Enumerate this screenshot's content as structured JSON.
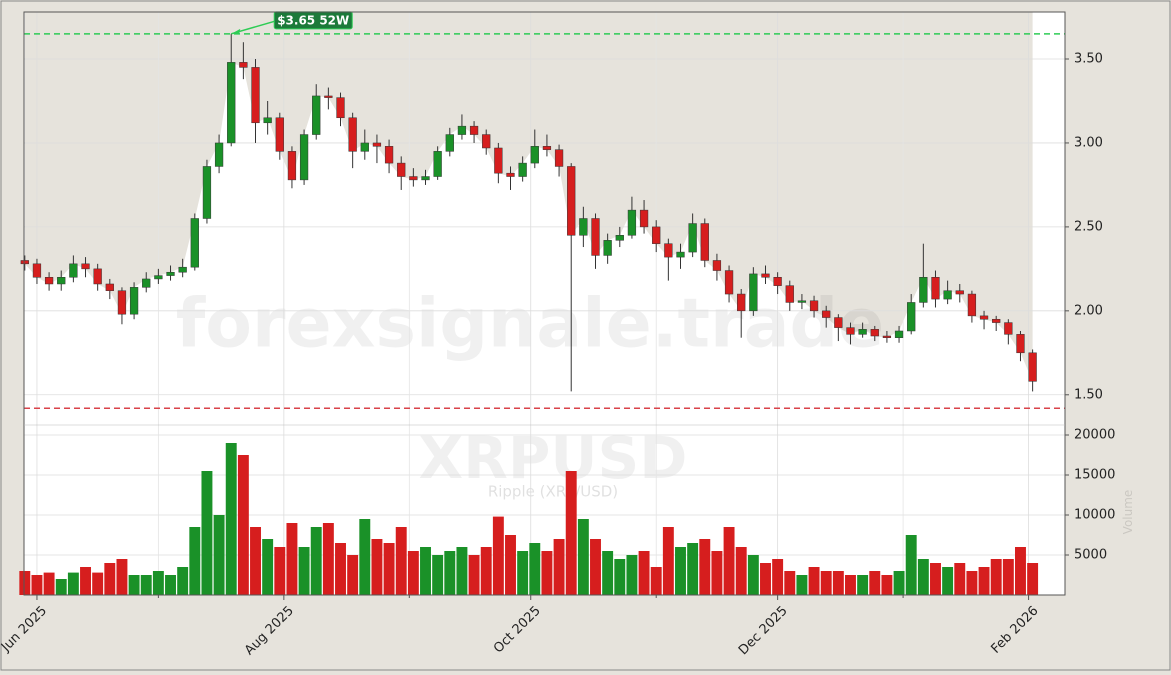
{
  "chart_data": {
    "type": "candlestick",
    "x": [
      -3,
      0,
      3,
      6,
      9,
      12,
      15,
      18,
      21,
      24,
      27,
      30,
      33,
      36,
      39,
      42,
      45,
      48,
      51,
      54,
      57,
      60,
      63,
      66,
      69,
      72,
      75,
      78,
      81,
      84,
      87,
      90,
      93,
      96,
      99,
      102,
      105,
      108,
      111,
      114,
      117,
      120,
      123,
      126,
      129,
      132,
      135,
      138,
      141,
      144,
      147,
      150,
      153,
      156,
      159,
      162,
      165,
      168,
      171,
      174,
      177,
      180,
      183,
      186,
      189,
      192,
      195,
      198,
      201,
      204,
      207,
      210,
      213,
      216,
      219,
      222,
      225,
      228,
      231,
      234,
      237,
      240,
      243,
      246
    ],
    "open": [
      2.3,
      2.28,
      2.2,
      2.16,
      2.2,
      2.28,
      2.25,
      2.16,
      2.12,
      1.98,
      2.14,
      2.19,
      2.21,
      2.23,
      2.26,
      2.55,
      2.86,
      3.0,
      3.48,
      3.45,
      3.12,
      3.15,
      2.95,
      2.78,
      3.05,
      3.28,
      3.27,
      3.15,
      2.95,
      3.0,
      2.98,
      2.88,
      2.8,
      2.78,
      2.8,
      2.95,
      3.05,
      3.1,
      3.05,
      2.97,
      2.82,
      2.8,
      2.88,
      2.98,
      2.96,
      2.86,
      2.45,
      2.55,
      2.33,
      2.42,
      2.45,
      2.6,
      2.5,
      2.4,
      2.32,
      2.35,
      2.52,
      2.3,
      2.24,
      2.1,
      2.0,
      2.22,
      2.2,
      2.15,
      2.05,
      2.06,
      2.0,
      1.96,
      1.9,
      1.86,
      1.89,
      1.85,
      1.84,
      1.88,
      2.05,
      2.2,
      2.07,
      2.12,
      2.1,
      1.97,
      1.95,
      1.93,
      1.86,
      1.75
    ],
    "high": [
      2.33,
      2.31,
      2.23,
      2.24,
      2.33,
      2.32,
      2.28,
      2.19,
      2.14,
      2.17,
      2.23,
      2.25,
      2.27,
      2.31,
      2.58,
      2.9,
      3.05,
      3.65,
      3.6,
      3.5,
      3.25,
      3.18,
      2.98,
      3.08,
      3.35,
      3.33,
      3.3,
      3.18,
      3.08,
      3.05,
      3.02,
      2.92,
      2.85,
      2.84,
      2.98,
      3.09,
      3.17,
      3.13,
      3.08,
      3.0,
      2.86,
      2.92,
      3.08,
      3.05,
      2.99,
      2.88,
      2.62,
      2.58,
      2.46,
      2.5,
      2.68,
      2.66,
      2.54,
      2.43,
      2.4,
      2.58,
      2.55,
      2.34,
      2.27,
      2.13,
      2.26,
      2.27,
      2.23,
      2.18,
      2.1,
      2.09,
      2.03,
      1.98,
      1.93,
      1.93,
      1.91,
      1.88,
      1.91,
      2.1,
      2.4,
      2.24,
      2.18,
      2.16,
      2.12,
      2.0,
      1.97,
      1.95,
      1.88,
      1.77
    ],
    "low": [
      2.24,
      2.16,
      2.12,
      2.12,
      2.17,
      2.2,
      2.12,
      2.07,
      1.92,
      1.95,
      2.11,
      2.16,
      2.18,
      2.2,
      2.24,
      2.52,
      2.82,
      2.98,
      3.38,
      3.0,
      3.05,
      2.9,
      2.73,
      2.75,
      3.02,
      3.2,
      3.1,
      2.85,
      2.9,
      2.88,
      2.82,
      2.72,
      2.74,
      2.75,
      2.78,
      2.92,
      3.02,
      3.0,
      2.93,
      2.76,
      2.72,
      2.77,
      2.85,
      2.92,
      2.8,
      1.52,
      2.38,
      2.25,
      2.28,
      2.38,
      2.43,
      2.46,
      2.35,
      2.18,
      2.25,
      2.32,
      2.26,
      2.18,
      2.05,
      1.84,
      1.97,
      2.16,
      2.1,
      2.0,
      2.01,
      1.96,
      1.9,
      1.82,
      1.8,
      1.84,
      1.82,
      1.81,
      1.81,
      1.86,
      2.02,
      2.02,
      2.04,
      2.05,
      1.93,
      1.89,
      1.88,
      1.8,
      1.7,
      1.52
    ],
    "close": [
      2.28,
      2.2,
      2.16,
      2.2,
      2.28,
      2.25,
      2.16,
      2.12,
      1.98,
      2.14,
      2.19,
      2.21,
      2.23,
      2.26,
      2.55,
      2.86,
      3.0,
      3.48,
      3.45,
      3.12,
      3.15,
      2.95,
      2.78,
      3.05,
      3.28,
      3.27,
      3.15,
      2.95,
      3.0,
      2.98,
      2.88,
      2.8,
      2.78,
      2.8,
      2.95,
      3.05,
      3.1,
      3.05,
      2.97,
      2.82,
      2.8,
      2.88,
      2.98,
      2.96,
      2.86,
      2.45,
      2.55,
      2.33,
      2.42,
      2.45,
      2.6,
      2.5,
      2.4,
      2.32,
      2.35,
      2.52,
      2.3,
      2.24,
      2.1,
      2.0,
      2.22,
      2.2,
      2.15,
      2.05,
      2.06,
      2.0,
      1.96,
      1.9,
      1.86,
      1.89,
      1.85,
      1.84,
      1.88,
      2.05,
      2.2,
      2.07,
      2.12,
      2.1,
      1.97,
      1.95,
      1.93,
      1.86,
      1.75,
      1.58
    ],
    "volume": [
      3000,
      2500,
      2800,
      2000,
      2800,
      3500,
      2800,
      4000,
      4500,
      2500,
      2500,
      3000,
      2500,
      3500,
      8500,
      15500,
      10000,
      19000,
      17500,
      8500,
      7000,
      6000,
      9000,
      6000,
      8500,
      9000,
      6500,
      5000,
      9500,
      7000,
      6500,
      8500,
      5500,
      6000,
      5000,
      5500,
      6000,
      5000,
      6000,
      9800,
      7500,
      5500,
      6500,
      5500,
      7000,
      15500,
      9500,
      7000,
      5500,
      4500,
      5000,
      5500,
      3500,
      8500,
      6000,
      6500,
      7000,
      5500,
      8500,
      6000,
      5000,
      4000,
      4500,
      3000,
      2500,
      3500,
      3000,
      3000,
      2500,
      2500,
      3000,
      2500,
      3000,
      7500,
      4500,
      4000,
      3500,
      4000,
      3000,
      3500,
      4500,
      4500,
      6000,
      4000
    ],
    "up_color": "#1a9128",
    "down_color": "#d61e1e",
    "shade_color": "#e6e3dc",
    "xlim": [
      -3.2,
      254
    ],
    "xticks": [
      {
        "value": 0,
        "label": "Jun 2025"
      },
      {
        "value": 61,
        "label": "Aug 2025"
      },
      {
        "value": 122,
        "label": "Oct 2025"
      },
      {
        "value": 183,
        "label": "Dec 2025"
      },
      {
        "value": 245,
        "label": "Feb 2026"
      }
    ],
    "xminorticks": [
      30,
      92,
      153,
      214
    ],
    "ylim": [
      1.32,
      3.78
    ],
    "yticks": [
      {
        "value": 1.5,
        "label": "1.50"
      },
      {
        "value": 2,
        "label": "2.00"
      },
      {
        "value": 2.5,
        "label": "2.50"
      },
      {
        "value": 3,
        "label": "3.00"
      },
      {
        "value": 3.5,
        "label": "3.50"
      }
    ],
    "volume_ylim": [
      0,
      21250
    ],
    "volume_yticks": [
      5000,
      10000,
      15000,
      20000
    ],
    "volume_axis_label": "Volume",
    "hlines": [
      {
        "value": 3.65,
        "color": "#2ecc55"
      },
      {
        "value": 1.42,
        "color": "#d9434a"
      }
    ],
    "annotation": {
      "text": "$3.65 52W",
      "x": 48,
      "y": 3.65
    },
    "watermarks": [
      "forexsignale.trade",
      "XRPUSD",
      "Ripple (XRP/USD)"
    ],
    "grid": true
  }
}
